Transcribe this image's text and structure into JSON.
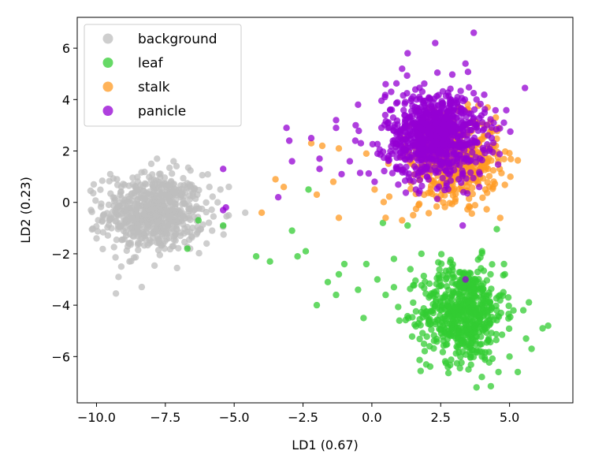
{
  "chart_data": {
    "type": "scatter",
    "title": "",
    "xlabel": "LD1 (0.67)",
    "ylabel": "LD2 (0.23)",
    "xlim": [
      -10.7,
      7.3
    ],
    "ylim": [
      -7.8,
      7.2
    ],
    "xticks": [
      -10.0,
      -7.5,
      -5.0,
      -2.5,
      0.0,
      2.5,
      5.0
    ],
    "xtick_labels": [
      "−10.0",
      "−7.5",
      "−5.0",
      "−2.5",
      "0.0",
      "2.5",
      "5.0"
    ],
    "yticks": [
      -6,
      -4,
      -2,
      0,
      2,
      4,
      6
    ],
    "ytick_labels": [
      "−6",
      "−4",
      "−2",
      "0",
      "2",
      "4",
      "6"
    ],
    "grid": false,
    "legend_position": "top-left",
    "series": [
      {
        "name": "background",
        "color": "#bebebe",
        "clusters": [
          {
            "cx": -7.9,
            "cy": -0.4,
            "sx": 0.9,
            "sy": 0.75,
            "n": 650
          }
        ],
        "points": [
          [
            -10.1,
            0.7
          ],
          [
            -10.2,
            -0.3
          ],
          [
            -10.0,
            -1.4
          ],
          [
            -9.5,
            1.1
          ],
          [
            -9.1,
            -2.5
          ],
          [
            -9.2,
            -2.9
          ],
          [
            -8.8,
            -2.3
          ],
          [
            -7.8,
            1.7
          ],
          [
            -7.2,
            1.6
          ],
          [
            -6.0,
            -1.6
          ],
          [
            -6.6,
            -1.8
          ],
          [
            -5.5,
            0.5
          ],
          [
            -5.8,
            -1.1
          ],
          [
            -5.6,
            0.0
          ],
          [
            -4.6,
            -0.4
          ],
          [
            -5.9,
            0.6
          ]
        ]
      },
      {
        "name": "leaf",
        "color": "#33cc33",
        "clusters": [
          {
            "cx": 3.3,
            "cy": -4.3,
            "sx": 0.75,
            "sy": 0.95,
            "n": 600
          }
        ],
        "points": [
          [
            -6.3,
            -0.7
          ],
          [
            -5.4,
            -0.9
          ],
          [
            -6.7,
            -1.8
          ],
          [
            -4.2,
            -2.1
          ],
          [
            -3.7,
            -2.3
          ],
          [
            -2.9,
            -1.1
          ],
          [
            -2.7,
            -2.1
          ],
          [
            -2.4,
            -1.9
          ],
          [
            -2.0,
            -4.0
          ],
          [
            -2.3,
            0.5
          ],
          [
            -1.6,
            -3.1
          ],
          [
            -1.3,
            -3.6
          ],
          [
            -1.2,
            -2.8
          ],
          [
            -1.0,
            -2.4
          ],
          [
            -0.5,
            -3.4
          ],
          [
            -0.3,
            -4.5
          ],
          [
            -0.2,
            -2.4
          ],
          [
            0.2,
            -3.0
          ],
          [
            0.5,
            -3.6
          ],
          [
            0.8,
            -2.2
          ],
          [
            0.8,
            -3.3
          ],
          [
            1.0,
            -4.6
          ],
          [
            1.4,
            -2.6
          ],
          [
            1.5,
            -3.9
          ],
          [
            1.8,
            -2.0
          ],
          [
            0.4,
            -0.8
          ],
          [
            1.3,
            -0.9
          ],
          [
            5.3,
            -6.6
          ],
          [
            5.8,
            -5.7
          ],
          [
            6.2,
            -4.9
          ],
          [
            6.4,
            -4.8
          ],
          [
            5.6,
            -5.3
          ],
          [
            5.5,
            -4.2
          ],
          [
            4.6,
            -6.6
          ],
          [
            3.8,
            -7.2
          ],
          [
            5.0,
            -6.0
          ],
          [
            4.8,
            -2.4
          ],
          [
            4.0,
            -1.9
          ]
        ]
      },
      {
        "name": "stalk",
        "color": "#ff9922",
        "clusters": [
          {
            "cx": 3.0,
            "cy": 1.7,
            "sx": 0.8,
            "sy": 0.8,
            "n": 520
          }
        ],
        "points": [
          [
            -3.5,
            0.9
          ],
          [
            -3.2,
            0.6
          ],
          [
            -4.0,
            -0.4
          ],
          [
            -2.0,
            0.3
          ],
          [
            -1.4,
            0.8
          ],
          [
            -1.2,
            -0.6
          ],
          [
            -1.2,
            2.1
          ],
          [
            -1.8,
            2.2
          ],
          [
            -2.2,
            2.3
          ],
          [
            -0.2,
            1.9
          ],
          [
            0.1,
            0.5
          ],
          [
            0.5,
            -0.6
          ],
          [
            1.5,
            -0.5
          ],
          [
            1.1,
            -0.7
          ],
          [
            4.5,
            3.3
          ],
          [
            4.6,
            2.9
          ],
          [
            4.4,
            0.6
          ],
          [
            4.5,
            2.2
          ],
          [
            1.7,
            -0.1
          ]
        ]
      },
      {
        "name": "panicle",
        "color": "#9400d3",
        "clusters": [
          {
            "cx": 2.3,
            "cy": 2.6,
            "sx": 0.9,
            "sy": 0.85,
            "n": 850
          }
        ],
        "points": [
          [
            -5.4,
            1.3
          ],
          [
            -5.3,
            -0.2
          ],
          [
            -5.4,
            -0.3
          ],
          [
            -3.4,
            0.2
          ],
          [
            -3.1,
            2.9
          ],
          [
            -3.0,
            2.4
          ],
          [
            -2.9,
            1.6
          ],
          [
            -2.2,
            2.5
          ],
          [
            -1.9,
            1.3
          ],
          [
            -1.9,
            1.7
          ],
          [
            -1.3,
            2.9
          ],
          [
            -1.3,
            3.2
          ],
          [
            -1.1,
            1.1
          ],
          [
            -0.8,
            1.6
          ],
          [
            -0.6,
            2.4
          ],
          [
            -0.5,
            3.8
          ],
          [
            -0.4,
            2.3
          ],
          [
            0.1,
            0.8
          ],
          [
            0.5,
            4.6
          ],
          [
            1.3,
            5.8
          ],
          [
            1.1,
            5.2
          ],
          [
            2.3,
            6.2
          ],
          [
            3.7,
            6.6
          ],
          [
            3.4,
            5.4
          ],
          [
            3.3,
            -0.9
          ],
          [
            3.4,
            -3.0
          ],
          [
            3.9,
            0.6
          ],
          [
            0.7,
            4.3
          ],
          [
            3.8,
            4.0
          ]
        ]
      }
    ]
  }
}
